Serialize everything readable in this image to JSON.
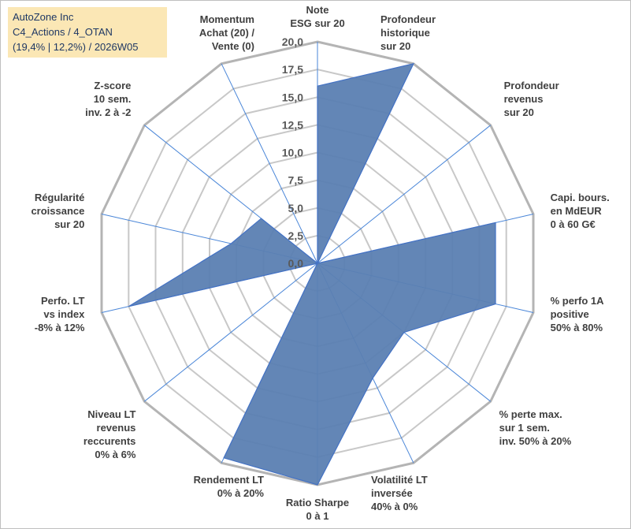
{
  "info": {
    "line1": "AutoZone Inc",
    "line2": "C4_Actions / 4_OTAN",
    "line3": "(19,4% | 12,2%) / 2026W05"
  },
  "colors": {
    "fill": "#5b80b2",
    "fill_stroke": "#4472c4",
    "ring": "#c8c8c8",
    "ring_outer": "#b4b4b4",
    "spoke": "#4a86d8",
    "info_bg": "#fbe7b5",
    "info_text": "#1f3864"
  },
  "chart_data": {
    "type": "radar",
    "title": "",
    "rmin": 0,
    "rmax": 20,
    "ticks": [
      "0,0",
      "2,5",
      "5,0",
      "7,5",
      "10,0",
      "12,5",
      "15,0",
      "17,5",
      "20,0"
    ],
    "axes": [
      {
        "label": [
          "Note",
          "ESG sur 20"
        ],
        "value": 16.0
      },
      {
        "label": [
          "Profondeur",
          "historique",
          "sur 20"
        ],
        "value": 20.0
      },
      {
        "label": [
          "Profondeur",
          "revenus",
          "sur 20"
        ],
        "value": 0.0
      },
      {
        "label": [
          "Capi. bours.",
          "en MdEUR",
          "0 à 60 G€"
        ],
        "value": 16.5
      },
      {
        "label": [
          "% perfo 1A",
          "positive",
          "50% à 80%"
        ],
        "value": 16.5
      },
      {
        "label": [
          "% perte max.",
          "sur 1 sem.",
          "inv. 50% à 20%"
        ],
        "value": 10.0
      },
      {
        "label": [
          "Volatilité LT",
          "inversée",
          "40% à 0%"
        ],
        "value": 11.5
      },
      {
        "label": [
          "Ratio Sharpe",
          "0 à 1"
        ],
        "value": 20.0
      },
      {
        "label": [
          "Rendement LT",
          "0% à 20%"
        ],
        "value": 19.5
      },
      {
        "label": [
          "Niveau LT",
          "revenus",
          "reccurents",
          "0% à 6%"
        ],
        "value": 0.0
      },
      {
        "label": [
          "Perfo. LT",
          "vs index",
          "-8% à 12%"
        ],
        "value": 17.5
      },
      {
        "label": [
          "Régularité",
          "croissance",
          "sur 20"
        ],
        "value": 8.0
      },
      {
        "label": [
          "Z-score",
          "10 sem.",
          "inv. 2 à -2"
        ],
        "value": 6.5
      },
      {
        "label": [
          "Momentum",
          "Achat (20) /",
          "Vente (0)"
        ],
        "value": 0.0
      }
    ]
  }
}
